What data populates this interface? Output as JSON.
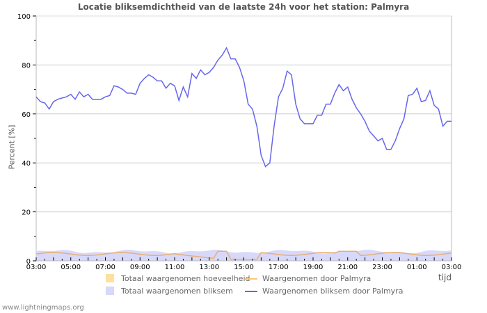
{
  "title": "Locatie bliksemdichtheid van de laatste 24h voor het station: Palmyra",
  "credit": "www.lightningmaps.org",
  "chart_data": {
    "type": "line",
    "title": "Locatie bliksemdichtheid van de laatste 24h voor het station: Palmyra",
    "xlabel": "tijd",
    "ylabel": "Percent   [%]",
    "ylim": [
      0,
      100
    ],
    "yticks": [
      0,
      20,
      40,
      60,
      80,
      100
    ],
    "xticks": [
      "03:00",
      "05:00",
      "07:00",
      "09:00",
      "11:00",
      "13:00",
      "15:00",
      "17:00",
      "19:00",
      "21:00",
      "23:00",
      "01:00",
      "03:00"
    ],
    "grid": true,
    "legend": [
      {
        "label": "Totaal waargenomen hoeveelheid",
        "color": "#ffe0a0",
        "kind": "area"
      },
      {
        "label": "Waargenomen door Palmyra",
        "color": "#f8c870",
        "kind": "line"
      },
      {
        "label": "Totaal waargenomen bliksem",
        "color": "#d8d8fa",
        "kind": "area"
      },
      {
        "label": "Waargenomen bliksem door Palmyra",
        "color": "#6666ee",
        "kind": "line"
      }
    ],
    "series": [
      {
        "name": "Waargenomen bliksem door Palmyra",
        "x_hours": [
          0,
          0.25,
          0.5,
          0.75,
          1,
          1.25,
          1.5,
          1.75,
          2,
          2.25,
          2.5,
          2.75,
          3,
          3.25,
          3.5,
          3.75,
          4,
          4.25,
          4.5,
          4.75,
          5,
          5.25,
          5.5,
          5.75,
          6,
          6.25,
          6.5,
          6.75,
          7,
          7.25,
          7.5,
          7.75,
          8,
          8.25,
          8.5,
          8.75,
          9,
          9.25,
          9.5,
          9.75,
          10,
          10.25,
          10.5,
          10.75,
          11,
          11.25,
          11.5,
          11.75,
          12,
          12.25,
          12.5,
          12.75,
          13,
          13.25,
          13.5,
          13.75,
          14,
          14.25,
          14.5,
          14.75,
          15,
          15.25,
          15.5,
          15.75,
          16,
          16.25,
          16.5,
          16.75,
          17,
          17.25,
          17.5,
          17.75,
          18,
          18.25,
          18.5,
          18.75,
          19,
          19.25,
          19.5,
          19.75,
          20,
          20.25,
          20.5,
          20.75,
          21,
          21.25,
          21.5,
          21.75,
          22,
          22.25,
          22.5,
          22.75,
          23,
          23.25,
          23.5,
          23.75,
          24
        ],
        "values": [
          67,
          65,
          64.5,
          62,
          65,
          66,
          66.5,
          67,
          68,
          66,
          69,
          67,
          68,
          66,
          66,
          66,
          67,
          67.5,
          71.5,
          71,
          70,
          68.5,
          68.5,
          68,
          72.5,
          74.5,
          76,
          75,
          73.5,
          73.5,
          70.5,
          72.5,
          71.5,
          65.5,
          71,
          67,
          76.5,
          74.5,
          78,
          76,
          77,
          79,
          82,
          84,
          87,
          82.5,
          82.5,
          79,
          73.5,
          64,
          62,
          55,
          43,
          38.5,
          40,
          55,
          67,
          70.5,
          77.5,
          76,
          64,
          58,
          56,
          56,
          56,
          59.5,
          59.5,
          64,
          64,
          68.5,
          72,
          69.5,
          71,
          66,
          62.5,
          60,
          57,
          53,
          51,
          49,
          50,
          45.5,
          45.5,
          49,
          54,
          58,
          67.5,
          68,
          70.5,
          65,
          65.5,
          69.5,
          63.5,
          62,
          55,
          57,
          57
        ]
      },
      {
        "name": "Waargenomen door Palmyra",
        "note": "approx",
        "values_approx": "2-4 %, peak ~4 at 13:20 and 21:00"
      },
      {
        "name": "Totaal waargenomen bliksem",
        "note": "approx",
        "values_approx": "3.5-4.5 %"
      }
    ]
  }
}
